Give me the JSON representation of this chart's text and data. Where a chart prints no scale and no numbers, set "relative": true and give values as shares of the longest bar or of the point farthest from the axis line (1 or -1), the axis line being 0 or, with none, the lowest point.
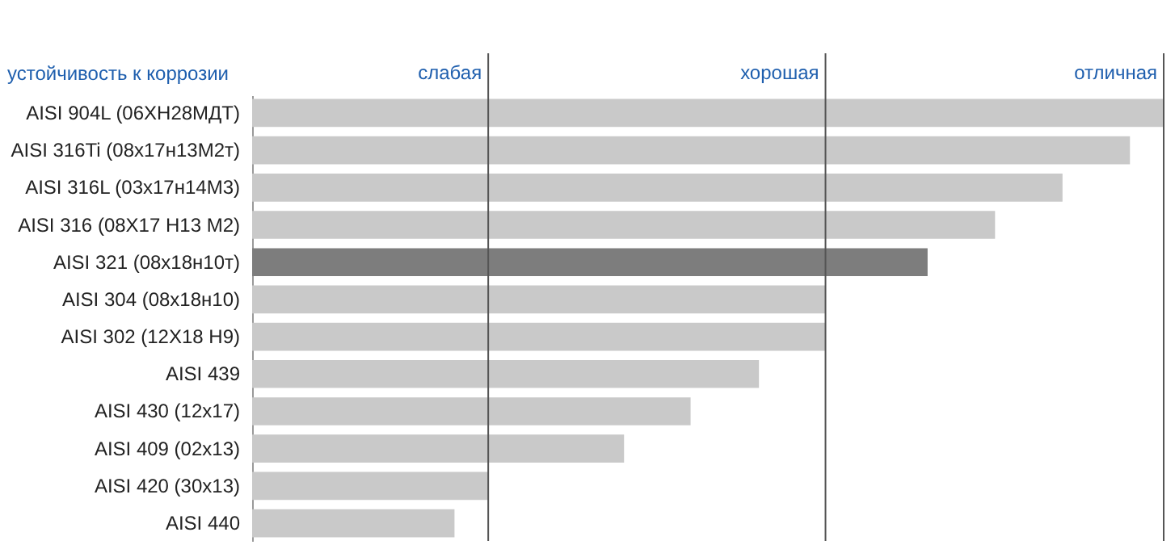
{
  "chart_data": {
    "type": "bar",
    "orientation": "horizontal",
    "relative": true,
    "ylabel": "устойчивость к коррозии",
    "categories": [
      "AISI 904L (06ХН28МДТ)",
      "AISI 316Ti (08х17н13М2т)",
      "AISI 316L (03х17н14М3)",
      "AISI 316 (08X17 H13 M2)",
      "AISI 321 (08х18н10т)",
      "AISI 304 (08х18н10)",
      "AISI 302 (12X18 H9)",
      "AISI 439",
      "AISI 430 (12x17)",
      "AISI 409 (02x13)",
      "AISI 420 (30x13)",
      "AISI 440"
    ],
    "values": [
      1.0,
      0.963,
      0.889,
      0.815,
      0.741,
      0.629,
      0.629,
      0.556,
      0.481,
      0.408,
      0.259,
      0.222
    ],
    "colors": [
      "#c9c9c9",
      "#c9c9c9",
      "#c9c9c9",
      "#c9c9c9",
      "#7d7d7d",
      "#c9c9c9",
      "#c9c9c9",
      "#c9c9c9",
      "#c9c9c9",
      "#c9c9c9",
      "#c9c9c9",
      "#c9c9c9"
    ],
    "ref_lines": [
      {
        "axis": "x",
        "value": 0.259,
        "label": "слабая",
        "color": "#555555"
      },
      {
        "axis": "x",
        "value": 0.629,
        "label": "хорошая",
        "color": "#555555"
      },
      {
        "axis": "x",
        "value": 1.0,
        "label": "отличная",
        "color": "#555555"
      }
    ]
  }
}
